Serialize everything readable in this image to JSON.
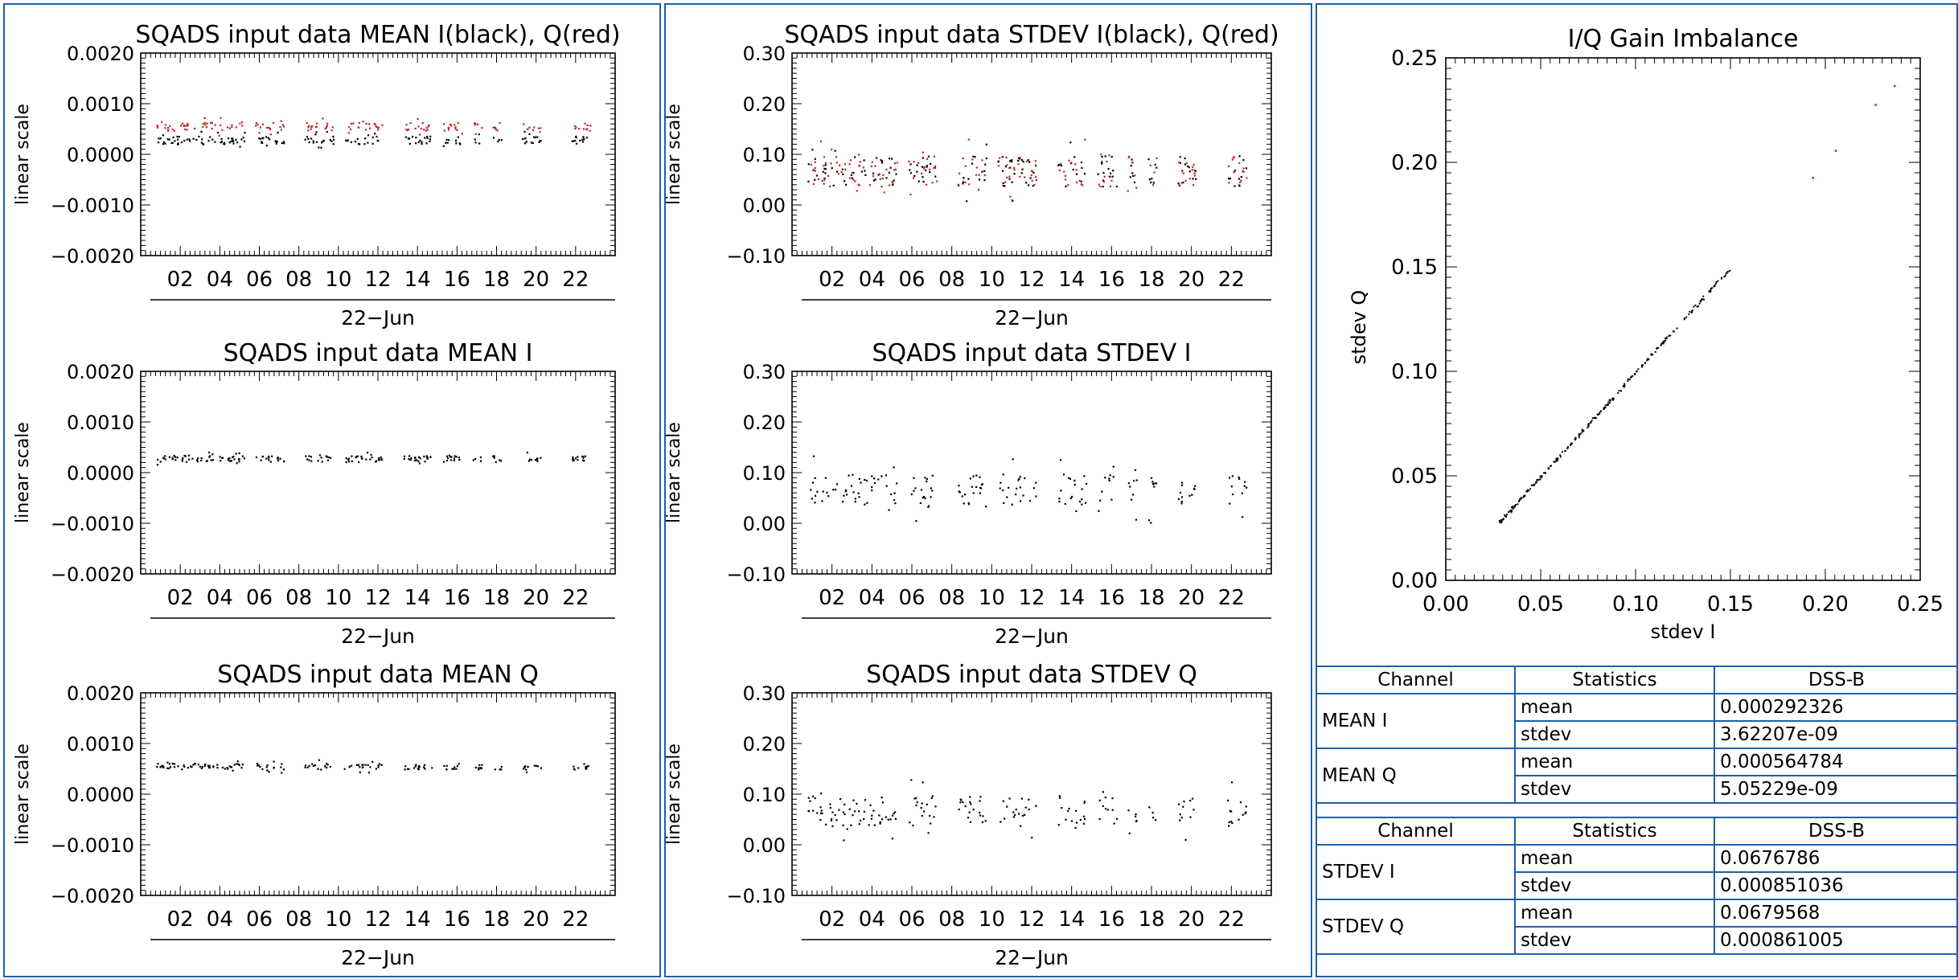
{
  "chart_data": [
    {
      "type": "scatter",
      "title": "SQADS input data MEAN I(black), Q(red)",
      "ylabel": "linear scale",
      "xlabel": "22−Jun",
      "x_ticks": [
        "02",
        "04",
        "06",
        "08",
        "10",
        "12",
        "14",
        "16",
        "18",
        "20",
        "22"
      ],
      "y_ticks": [
        "0.0020",
        "0.0010",
        "0.0000",
        "−0.0010",
        "−0.0020"
      ],
      "ylim": [
        -0.002,
        0.002
      ],
      "xlim": [
        0,
        24
      ],
      "series": [
        {
          "name": "I",
          "color": "#000000",
          "center": 0.00029,
          "spread": 8e-05
        },
        {
          "name": "Q",
          "color": "#c0262b",
          "center": 0.00056,
          "spread": 8e-05
        }
      ],
      "clusters": [
        1,
        1.5,
        2,
        2.5,
        3,
        3.5,
        4,
        4.5,
        5,
        6,
        6.5,
        7,
        8.5,
        9,
        9.5,
        10.5,
        11,
        11.5,
        12,
        13.5,
        14,
        14.5,
        15.5,
        16,
        17,
        18,
        19.5,
        20,
        22,
        22.5
      ]
    },
    {
      "type": "scatter",
      "title": "SQADS input data STDEV I(black), Q(red)",
      "ylabel": "linear scale",
      "xlabel": "22−Jun",
      "x_ticks": [
        "02",
        "04",
        "06",
        "08",
        "10",
        "12",
        "14",
        "16",
        "18",
        "20",
        "22"
      ],
      "y_ticks": [
        "0.30",
        "0.20",
        "0.10",
        "0.00",
        "−0.10"
      ],
      "ylim": [
        -0.1,
        0.3
      ],
      "xlim": [
        0,
        24
      ],
      "series": [
        {
          "name": "I",
          "color": "#000000",
          "center": 0.068,
          "spread": 0.03
        },
        {
          "name": "Q",
          "color": "#c0262b",
          "center": 0.068,
          "spread": 0.03
        }
      ],
      "clusters": [
        1,
        1.5,
        2,
        2.5,
        3,
        3.5,
        4,
        4.5,
        5,
        6,
        6.5,
        7,
        8.5,
        9,
        9.5,
        10.5,
        11,
        11.5,
        12,
        13.5,
        14,
        14.5,
        15.5,
        16,
        17,
        18,
        19.5,
        20,
        22,
        22.5
      ]
    },
    {
      "type": "scatter",
      "title": "SQADS input data MEAN I",
      "ylabel": "linear scale",
      "xlabel": "22−Jun",
      "x_ticks": [
        "02",
        "04",
        "06",
        "08",
        "10",
        "12",
        "14",
        "16",
        "18",
        "20",
        "22"
      ],
      "y_ticks": [
        "0.0020",
        "0.0010",
        "0.0000",
        "−0.0010",
        "−0.0020"
      ],
      "ylim": [
        -0.002,
        0.002
      ],
      "xlim": [
        0,
        24
      ],
      "series": [
        {
          "name": "I",
          "color": "#000000",
          "center": 0.00029,
          "spread": 6e-05
        }
      ],
      "clusters": [
        1,
        1.5,
        2,
        2.5,
        3,
        3.5,
        4,
        4.5,
        5,
        6,
        6.5,
        7,
        8.5,
        9,
        9.5,
        10.5,
        11,
        11.5,
        12,
        13.5,
        14,
        14.5,
        15.5,
        16,
        17,
        18,
        19.5,
        20,
        22,
        22.5
      ]
    },
    {
      "type": "scatter",
      "title": "SQADS input data STDEV I",
      "ylabel": "linear scale",
      "xlabel": "22−Jun",
      "x_ticks": [
        "02",
        "04",
        "06",
        "08",
        "10",
        "12",
        "14",
        "16",
        "18",
        "20",
        "22"
      ],
      "y_ticks": [
        "0.30",
        "0.20",
        "0.10",
        "0.00",
        "−0.10"
      ],
      "ylim": [
        -0.1,
        0.3
      ],
      "xlim": [
        0,
        24
      ],
      "series": [
        {
          "name": "I",
          "color": "#000000",
          "center": 0.068,
          "spread": 0.03
        }
      ],
      "clusters": [
        1,
        1.5,
        2,
        2.5,
        3,
        3.5,
        4,
        4.5,
        5,
        6,
        6.5,
        7,
        8.5,
        9,
        9.5,
        10.5,
        11,
        11.5,
        12,
        13.5,
        14,
        14.5,
        15.5,
        16,
        17,
        18,
        19.5,
        20,
        22,
        22.5
      ]
    },
    {
      "type": "scatter",
      "title": "SQADS input data MEAN Q",
      "ylabel": "linear scale",
      "xlabel": "22−Jun",
      "x_ticks": [
        "02",
        "04",
        "06",
        "08",
        "10",
        "12",
        "14",
        "16",
        "18",
        "20",
        "22"
      ],
      "y_ticks": [
        "0.0020",
        "0.0010",
        "0.0000",
        "−0.0010",
        "−0.0020"
      ],
      "ylim": [
        -0.002,
        0.002
      ],
      "xlim": [
        0,
        24
      ],
      "series": [
        {
          "name": "Q",
          "color": "#000000",
          "center": 0.00056,
          "spread": 6e-05
        }
      ],
      "clusters": [
        1,
        1.5,
        2,
        2.5,
        3,
        3.5,
        4,
        4.5,
        5,
        6,
        6.5,
        7,
        8.5,
        9,
        9.5,
        10.5,
        11,
        11.5,
        12,
        13.5,
        14,
        14.5,
        15.5,
        16,
        17,
        18,
        19.5,
        20,
        22,
        22.5
      ]
    },
    {
      "type": "scatter",
      "title": "SQADS input data STDEV Q",
      "ylabel": "linear scale",
      "xlabel": "22−Jun",
      "x_ticks": [
        "02",
        "04",
        "06",
        "08",
        "10",
        "12",
        "14",
        "16",
        "18",
        "20",
        "22"
      ],
      "y_ticks": [
        "0.30",
        "0.20",
        "0.10",
        "0.00",
        "−0.10"
      ],
      "ylim": [
        -0.1,
        0.3
      ],
      "xlim": [
        0,
        24
      ],
      "series": [
        {
          "name": "Q",
          "color": "#000000",
          "center": 0.068,
          "spread": 0.03
        }
      ],
      "clusters": [
        1,
        1.5,
        2,
        2.5,
        3,
        3.5,
        4,
        4.5,
        5,
        6,
        6.5,
        7,
        8.5,
        9,
        9.5,
        10.5,
        11,
        11.5,
        12,
        13.5,
        14,
        14.5,
        15.5,
        16,
        17,
        18,
        19.5,
        20,
        22,
        22.5
      ]
    },
    {
      "type": "scatter",
      "title": "I/Q Gain Imbalance",
      "xlabel": "stdev I",
      "ylabel": "stdev Q",
      "xlim": [
        0,
        0.25
      ],
      "ylim": [
        0,
        0.25
      ],
      "x_ticks": [
        "0.00",
        "0.05",
        "0.10",
        "0.15",
        "0.20",
        "0.25"
      ],
      "y_ticks": [
        "0.25",
        "0.20",
        "0.15",
        "0.10",
        "0.05",
        "0.00"
      ],
      "line_range": [
        0.028,
        0.15
      ],
      "outliers": [
        [
          0.193,
          0.193
        ],
        [
          0.205,
          0.206
        ],
        [
          0.226,
          0.228
        ],
        [
          0.236,
          0.237
        ]
      ]
    }
  ],
  "stats_tables": [
    {
      "headers": [
        "Channel",
        "Statistics",
        "DSS-B"
      ],
      "rows": [
        {
          "channel": "MEAN I",
          "mean_label": "mean",
          "mean": "0.000292326",
          "stdev_label": "stdev",
          "stdev": "3.62207e-09"
        },
        {
          "channel": "MEAN Q",
          "mean_label": "mean",
          "mean": "0.000564784",
          "stdev_label": "stdev",
          "stdev": "5.05229e-09"
        }
      ]
    },
    {
      "headers": [
        "Channel",
        "Statistics",
        "DSS-B"
      ],
      "rows": [
        {
          "channel": "STDEV I",
          "mean_label": "mean",
          "mean": "0.0676786",
          "stdev_label": "stdev",
          "stdev": "0.000851036"
        },
        {
          "channel": "STDEV Q",
          "mean_label": "mean",
          "mean": "0.0679568",
          "stdev_label": "stdev",
          "stdev": "0.000861005"
        }
      ]
    }
  ]
}
